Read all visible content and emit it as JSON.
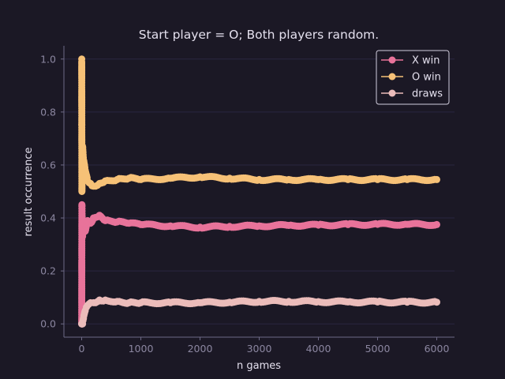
{
  "chart_data": {
    "type": "line",
    "title": "Start player = O; Both players random.",
    "xlabel": "n games",
    "ylabel": "result occurrence",
    "xlim": [
      -300,
      6300
    ],
    "ylim": [
      -0.05,
      1.05
    ],
    "x_ticks": [
      0,
      1000,
      2000,
      3000,
      4000,
      5000,
      6000
    ],
    "y_ticks": [
      0.0,
      0.2,
      0.4,
      0.6,
      0.8,
      1.0
    ],
    "x_tick_labels": [
      "0",
      "1000",
      "2000",
      "3000",
      "4000",
      "5000",
      "6000"
    ],
    "y_tick_labels": [
      "0.0",
      "0.2",
      "0.4",
      "0.6",
      "0.8",
      "1.0"
    ],
    "grid": "horizontal",
    "legend_position": "top-right",
    "markers": "circle",
    "series": [
      {
        "name": "X win",
        "color": "#e8739a",
        "x": [
          1,
          2,
          4,
          8,
          15,
          30,
          60,
          100,
          150,
          200,
          300,
          400,
          600,
          800,
          1000,
          1500,
          2000,
          2500,
          3000,
          3500,
          4000,
          4500,
          5000,
          5500,
          6000
        ],
        "values": [
          0.0,
          0.25,
          0.45,
          0.4,
          0.33,
          0.36,
          0.35,
          0.39,
          0.38,
          0.4,
          0.41,
          0.39,
          0.385,
          0.38,
          0.375,
          0.37,
          0.365,
          0.368,
          0.37,
          0.372,
          0.373,
          0.375,
          0.376,
          0.376,
          0.375
        ]
      },
      {
        "name": "O win",
        "color": "#f6c177",
        "x": [
          1,
          2,
          4,
          8,
          15,
          30,
          60,
          100,
          150,
          200,
          300,
          400,
          600,
          800,
          1000,
          1500,
          2000,
          2500,
          3000,
          3500,
          4000,
          4500,
          5000,
          5500,
          6000
        ],
        "values": [
          1.0,
          0.75,
          0.5,
          0.6,
          0.67,
          0.62,
          0.58,
          0.54,
          0.53,
          0.52,
          0.53,
          0.54,
          0.545,
          0.55,
          0.545,
          0.55,
          0.555,
          0.55,
          0.545,
          0.545,
          0.545,
          0.545,
          0.545,
          0.545,
          0.545
        ]
      },
      {
        "name": "draws",
        "color": "#ebbcba",
        "x": [
          1,
          2,
          4,
          8,
          15,
          30,
          60,
          100,
          150,
          200,
          300,
          400,
          600,
          800,
          1000,
          1500,
          2000,
          2500,
          3000,
          3500,
          4000,
          4500,
          5000,
          5500,
          6000
        ],
        "values": [
          0.0,
          0.0,
          0.0,
          0.0,
          0.0,
          0.02,
          0.05,
          0.07,
          0.08,
          0.08,
          0.09,
          0.09,
          0.085,
          0.08,
          0.08,
          0.08,
          0.08,
          0.082,
          0.085,
          0.085,
          0.084,
          0.083,
          0.083,
          0.082,
          0.082
        ]
      }
    ]
  },
  "colors": {
    "background": "#1b1825",
    "axis": "#6e6a86",
    "grid": "#2a2640",
    "legend_bg": "#1b1825",
    "legend_border": "#dcd8e8"
  }
}
